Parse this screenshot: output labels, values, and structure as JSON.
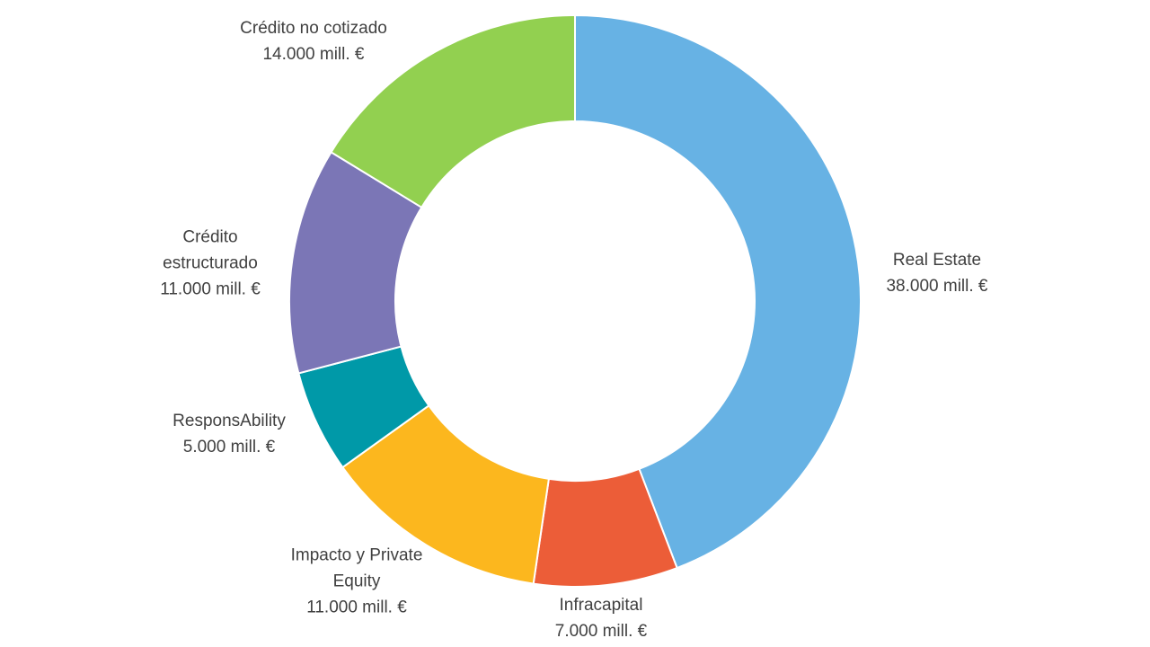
{
  "chart_data": {
    "type": "pie",
    "variant": "donut",
    "title": "",
    "unit": "mill. €",
    "start_angle_deg": 0,
    "direction": "clockwise",
    "legend": "none",
    "slices": [
      {
        "name": "Real Estate",
        "value": 38000,
        "name_lines": [
          "Real Estate"
        ],
        "value_label": "38.000 mill. €",
        "color": "#67B2E4"
      },
      {
        "name": "Infracapital",
        "value": 7000,
        "name_lines": [
          "Infracapital"
        ],
        "value_label": "7.000 mill. €",
        "color": "#EC5D38"
      },
      {
        "name": "Impacto y Private Equity",
        "value": 11000,
        "name_lines": [
          "Impacto y Private",
          "Equity"
        ],
        "value_label": "11.000 mill. €",
        "color": "#FCB71E"
      },
      {
        "name": "ResponsAbility",
        "value": 5000,
        "name_lines": [
          "ResponsAbility"
        ],
        "value_label": "5.000 mill. €",
        "color": "#0099A8"
      },
      {
        "name": "Crédito estructurado",
        "value": 11000,
        "name_lines": [
          "Crédito",
          "estructurado"
        ],
        "value_label": "11.000 mill. €",
        "color": "#7B76B6"
      },
      {
        "name": "Crédito no cotizado",
        "value": 14000,
        "name_lines": [
          "Crédito no cotizado"
        ],
        "value_label": "14.000 mill. €",
        "color": "#92D050"
      }
    ]
  }
}
